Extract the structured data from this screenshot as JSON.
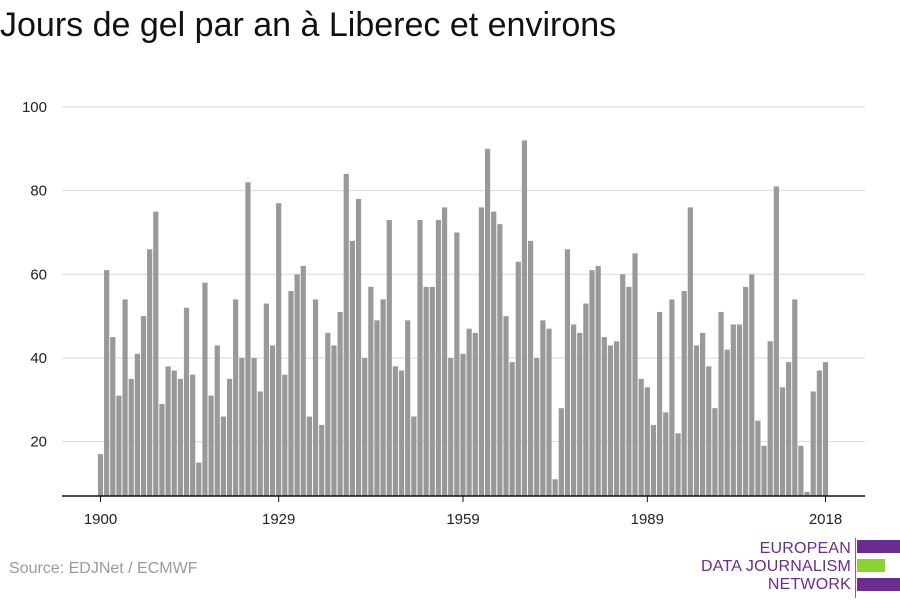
{
  "title": "Jours de gel par an à Liberec et environs",
  "source": "Source: EDJNet / ECMWF",
  "logo": {
    "line1": "EUROPEAN",
    "line2": "DATA JOURNALISM",
    "line3": "NETWORK",
    "colors": {
      "text": "#6a2c8e",
      "bar_purple": "#6a2c8e",
      "bar_green": "#8cd232"
    }
  },
  "chart_data": {
    "type": "bar",
    "title": "Jours de gel par an à Liberec et environs",
    "xlabel": "",
    "ylabel": "",
    "x_tick_labels": [
      "1900",
      "1929",
      "1959",
      "1989",
      "2018"
    ],
    "y_ticks": [
      20,
      40,
      60,
      80,
      100
    ],
    "ylim": [
      7,
      100
    ],
    "grid": true,
    "bar_color": "#999999",
    "x": [
      1900,
      1901,
      1902,
      1903,
      1904,
      1905,
      1906,
      1907,
      1908,
      1909,
      1910,
      1911,
      1912,
      1913,
      1914,
      1915,
      1916,
      1917,
      1918,
      1919,
      1920,
      1921,
      1922,
      1923,
      1924,
      1925,
      1926,
      1927,
      1928,
      1929,
      1930,
      1931,
      1932,
      1933,
      1934,
      1935,
      1936,
      1937,
      1938,
      1939,
      1940,
      1941,
      1942,
      1943,
      1944,
      1945,
      1946,
      1947,
      1948,
      1949,
      1950,
      1951,
      1952,
      1953,
      1954,
      1955,
      1956,
      1957,
      1958,
      1959,
      1960,
      1961,
      1962,
      1963,
      1964,
      1965,
      1966,
      1967,
      1968,
      1969,
      1970,
      1971,
      1972,
      1973,
      1974,
      1975,
      1976,
      1977,
      1978,
      1979,
      1980,
      1981,
      1982,
      1983,
      1984,
      1985,
      1986,
      1987,
      1988,
      1989,
      1990,
      1991,
      1992,
      1993,
      1994,
      1995,
      1996,
      1997,
      1998,
      1999,
      2000,
      2001,
      2002,
      2003,
      2004,
      2005,
      2006,
      2007,
      2008,
      2009,
      2010,
      2011,
      2012,
      2013,
      2014,
      2015,
      2016,
      2017,
      2018
    ],
    "values": [
      17,
      61,
      45,
      31,
      54,
      35,
      41,
      50,
      66,
      75,
      29,
      38,
      37,
      35,
      52,
      36,
      15,
      58,
      31,
      43,
      26,
      35,
      54,
      40,
      82,
      40,
      32,
      53,
      43,
      77,
      36,
      56,
      60,
      62,
      26,
      54,
      24,
      46,
      43,
      51,
      84,
      68,
      78,
      40,
      57,
      49,
      54,
      73,
      38,
      37,
      49,
      26,
      73,
      57,
      57,
      73,
      76,
      40,
      70,
      41,
      47,
      46,
      76,
      90,
      75,
      72,
      50,
      39,
      63,
      92,
      68,
      40,
      49,
      47,
      11,
      28,
      66,
      48,
      46,
      53,
      61,
      62,
      45,
      43,
      44,
      60,
      57,
      65,
      35,
      33,
      24,
      51,
      27,
      54,
      22,
      56,
      76,
      43,
      46,
      38,
      28,
      51,
      42,
      48,
      48,
      57,
      60,
      25,
      19,
      44,
      81,
      33,
      39,
      54,
      19,
      8,
      32,
      37,
      39
    ]
  }
}
